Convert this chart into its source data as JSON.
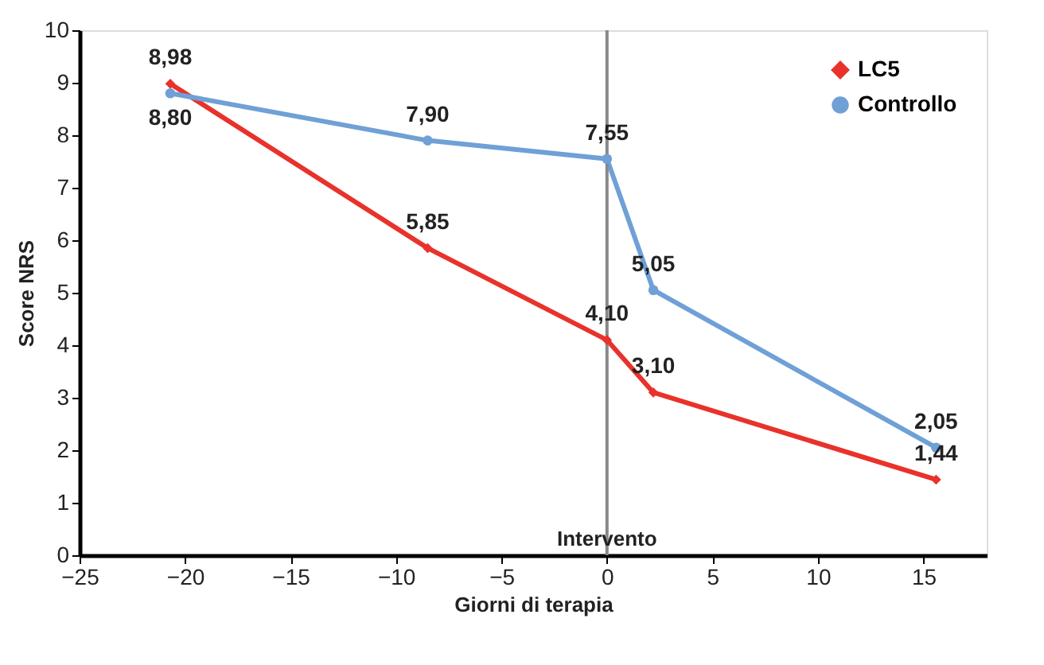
{
  "chart_data": {
    "type": "line",
    "xlabel": "Giorni di terapia",
    "ylabel": "Score NRS",
    "xlim": [
      -25,
      18
    ],
    "xticks": [
      -25,
      -20,
      -15,
      -10,
      -5,
      0,
      5,
      10,
      15
    ],
    "ylim": [
      0,
      10
    ],
    "yticks": [
      0,
      1,
      2,
      3,
      4,
      5,
      6,
      7,
      8,
      9,
      10
    ],
    "grid": false,
    "legend": "top right",
    "line_style": "solid",
    "series": [
      {
        "name": "LC5",
        "color": "#e8322b",
        "marker": "diamond",
        "x": [
          -20.7,
          -8.5,
          0,
          2.2,
          15.6
        ],
        "values": [
          8.98,
          5.85,
          4.1,
          3.1,
          1.44
        ],
        "value_labels": [
          "8,98",
          "5,85",
          "4,10",
          "3,10",
          "1,44"
        ]
      },
      {
        "name": "Controllo",
        "color": "#6fa0d6",
        "marker": "circle",
        "x": [
          -20.7,
          -8.5,
          0,
          2.2,
          15.6
        ],
        "values": [
          8.8,
          7.9,
          7.55,
          5.05,
          2.05
        ],
        "value_labels": [
          "8,80",
          "7,90",
          "7,55",
          "5,05",
          "2,05"
        ]
      }
    ],
    "ref_lines": [
      {
        "axis": "x",
        "value": 0,
        "label": "Intervento",
        "color": "#888888"
      }
    ]
  }
}
